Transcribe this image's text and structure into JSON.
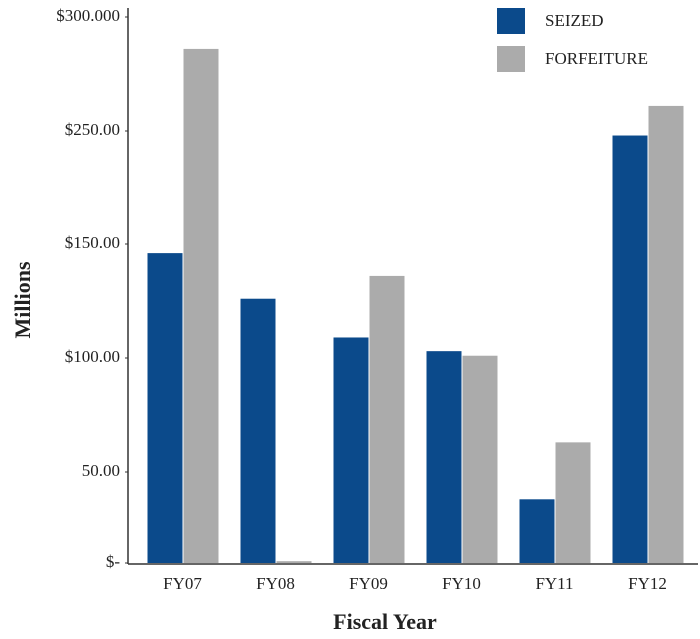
{
  "chart_data": {
    "type": "bar",
    "categories": [
      "FY07",
      "FY08",
      "FY09",
      "FY10",
      "FY11",
      "FY12"
    ],
    "series": [
      {
        "name": "SEIZED",
        "color": "#0b4a8b",
        "values": [
          146,
          126,
          109,
          103,
          35,
          246
        ]
      },
      {
        "name": "FORFEITURE",
        "color": "#ababab",
        "values": [
          286,
          1,
          136,
          101,
          63,
          261
        ]
      }
    ],
    "ylim": [
      0,
      300
    ],
    "yticks": [
      {
        "value": 0,
        "label": "$-"
      },
      {
        "value": 50,
        "label": "50.00"
      },
      {
        "value": 100,
        "label": "$100.00"
      },
      {
        "value": 150,
        "label": "$150.00"
      },
      {
        "value": 250,
        "label": "$250.00"
      },
      {
        "value": 300,
        "label": "$300.000"
      }
    ],
    "y_label": "Millions",
    "x_label": "Fiscal Year",
    "legend": "upper right",
    "grid": false
  }
}
